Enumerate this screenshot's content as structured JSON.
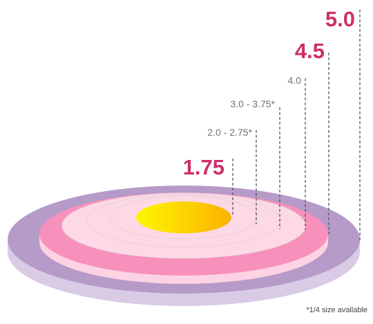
{
  "colors": {
    "outer_ring": "#b69ac8",
    "outer_edge": "#d9cbe6",
    "pink_ring": "#f790bb",
    "pink_edge": "#fdd3e3",
    "inner_rings": "#fdd9e6",
    "inner_stroke": "#ead2dc",
    "center_start": "#fff600",
    "center_end": "#fbb200",
    "highlight_text": "#cc2f6b",
    "gray_text": "#707070",
    "leader_line": "#555555"
  },
  "sizes": {
    "s1": {
      "label": "1.75",
      "emphasis": "large"
    },
    "s2": {
      "label": "2.0 - 2.75*",
      "emphasis": "small"
    },
    "s3": {
      "label": "3.0 - 3.75*",
      "emphasis": "small"
    },
    "s4": {
      "label": "4.0",
      "emphasis": "small"
    },
    "s5": {
      "label": "4.5",
      "emphasis": "large"
    },
    "s6": {
      "label": "5.0",
      "emphasis": "large"
    }
  },
  "footnote": "*1/4 size available"
}
